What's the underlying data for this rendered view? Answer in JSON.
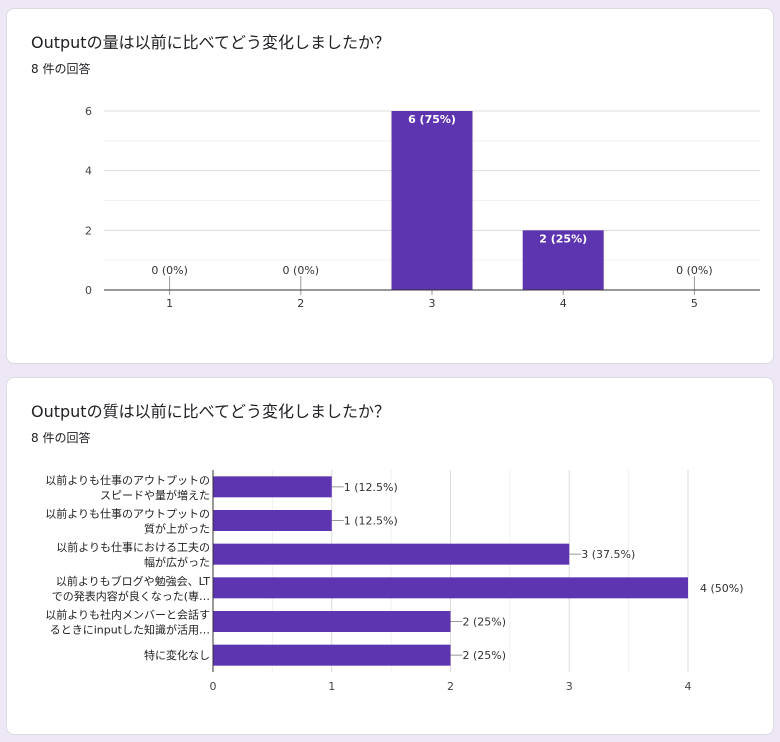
{
  "colors": {
    "bar": "#5e35b1",
    "grid": "#e8e8e8",
    "axis": "#333333"
  },
  "questions": [
    {
      "title": "Outputの量は以前に比べてどう変化しましたか？",
      "responses": "8 件の回答"
    },
    {
      "title": "Outputの質は以前に比べてどう変化しましたか？",
      "responses": "8 件の回答"
    }
  ],
  "chart_data": [
    {
      "type": "bar",
      "orientation": "vertical",
      "categories": [
        "1",
        "2",
        "3",
        "4",
        "5"
      ],
      "values": [
        0,
        0,
        6,
        2,
        0
      ],
      "data_labels": [
        "0 (0%)",
        "0 (0%)",
        "6 (75%)",
        "2 (25%)",
        "0 (0%)"
      ],
      "yticks": [
        "0",
        "2",
        "4",
        "6"
      ],
      "ylim": [
        0,
        6
      ],
      "grid": true
    },
    {
      "type": "bar",
      "orientation": "horizontal",
      "categories": [
        [
          "以前よりも仕事のアウトプットの",
          "スピードや量が増えた"
        ],
        [
          "以前よりも仕事のアウトプットの",
          "質が上がった"
        ],
        [
          "以前よりも仕事における工夫の",
          "幅が広がった"
        ],
        [
          "以前よりもブログや勉強会、LT",
          "での発表内容が良くなった(専…"
        ],
        [
          "以前よりも社内メンバーと会話す",
          "るときにinputした知識が活用…"
        ],
        [
          "特に変化なし"
        ]
      ],
      "values": [
        1,
        1,
        3,
        4,
        2,
        2
      ],
      "data_labels": [
        "1 (12.5%)",
        "1 (12.5%)",
        "3 (37.5%)",
        "4 (50%)",
        "2 (25%)",
        "2 (25%)"
      ],
      "xticks": [
        "0",
        "1",
        "2",
        "3",
        "4"
      ],
      "xlim": [
        0,
        4
      ],
      "grid": true
    }
  ]
}
